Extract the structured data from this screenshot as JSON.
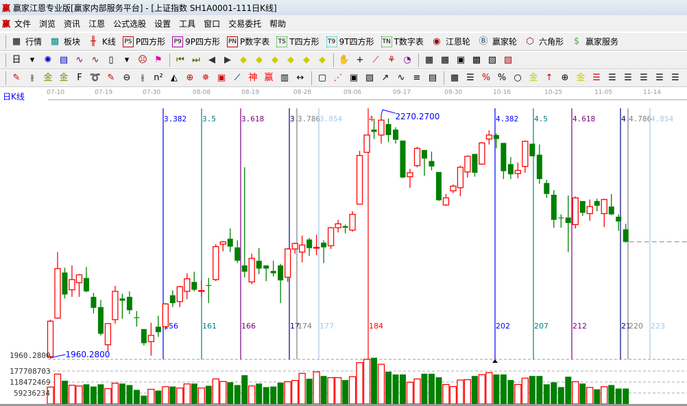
{
  "window": {
    "title": "赢家江恩专业版[赢家内部服务平台] - [上证指数  SH1A0001-111日K线]",
    "logo": "赢"
  },
  "menu": {
    "logo": "赢",
    "items": [
      "文件",
      "浏览",
      "资讯",
      "江恩",
      "公式选股",
      "设置",
      "工具",
      "窗口",
      "交易委托",
      "帮助"
    ]
  },
  "toolbar1": [
    {
      "icon": "grid-quote-icon",
      "glyph": "▦",
      "label": "行情"
    },
    {
      "icon": "sector-blocks-icon",
      "glyph": "▩",
      "label": "板块"
    },
    {
      "icon": "candlestick-icon",
      "glyph": "╫",
      "label": "K线"
    },
    {
      "icon": "ps-icon",
      "glyph": "PS",
      "label": "P四方形"
    },
    {
      "icon": "p9-icon",
      "glyph": "P9",
      "label": "9P四方形"
    },
    {
      "icon": "pn-icon",
      "glyph": "PN",
      "label": "P数字表"
    },
    {
      "icon": "ts-icon",
      "glyph": "TS",
      "label": "T四方形"
    },
    {
      "icon": "t9-icon",
      "glyph": "T9",
      "label": "9T四方形"
    },
    {
      "icon": "tn-icon",
      "glyph": "TN",
      "label": "T数字表"
    },
    {
      "icon": "gann-wheel-icon",
      "glyph": "◉",
      "label": "江恩轮"
    },
    {
      "icon": "big-wheel-icon",
      "glyph": "Ⓑ",
      "label": "赢家轮"
    },
    {
      "icon": "hexagon-icon",
      "glyph": "⬡",
      "label": "六角形"
    },
    {
      "icon": "dollar-icon",
      "glyph": "$",
      "label": "赢家服务"
    }
  ],
  "toolbar2": [
    "period-day-icon",
    "chevron-down-icon",
    "map-icon",
    "clipboard-icon",
    "wave3-icon",
    "wave9-icon",
    "candle-type-icon",
    "chevron-down-icon",
    "face-icon",
    "flag-icon",
    "first-page-icon",
    "last-page-icon",
    "left-arrow-icon",
    "right-arrow-icon",
    "sign-left-icon",
    "sign-right-icon",
    "sign-horizontal-icon",
    "sign-cross-icon",
    "sign-star-icon",
    "sign-vertical-icon",
    "hand-icon",
    "crosshair-icon",
    "pencil-line-icon",
    "tree-icon",
    "chart-pie-icon",
    "calendar-icon",
    "calculator-icon",
    "book-icon",
    "save-icon",
    "print-icon",
    "exit-icon"
  ],
  "toolbar3": [
    "pen-icon",
    "parallel-lines-icon",
    "gold-ruler-icon",
    "gold-ruler2-icon",
    "fib-icon",
    "spiral-icon",
    "pen-ruler-icon",
    "circle-ruler-icon",
    "four-lines-icon",
    "n2-icon",
    "triangle-icon",
    "target-icon",
    "web-icon",
    "square-web-icon",
    "angle-icon",
    "god-icon",
    "win-icon",
    "ruler123-icon",
    "width-icon",
    "box-icon",
    "fan-icon",
    "square-icon",
    "cross-box-icon",
    "arrow-icon",
    "wave-icon",
    "equal-icon",
    "chart-icon",
    "table-icon",
    "lines-icon",
    "percent-sign-icon",
    "percent-icon",
    "circle-icon",
    "gold-bars-icon",
    "arrow-up-icon",
    "lock-icon",
    "gold-icon",
    "hline-icon",
    "hline2-icon",
    "hline3-icon",
    "hline4-icon",
    "hline5-icon",
    "hline6-icon"
  ],
  "chart": {
    "period_label": "日K线",
    "dates": [
      "07-10",
      "07-19",
      "07-30",
      "08-08",
      "08-19",
      "08-28",
      "09-06",
      "09-17",
      "09-30",
      "10-16",
      "10-25",
      "11-05",
      "11-14"
    ],
    "price_axis_label": "1960.2800",
    "volume_axis_labels": [
      "177708703",
      "118472469",
      "59236234"
    ],
    "low_marker": "1960.2800",
    "high_marker": "2270.2700",
    "colors": {
      "up": "#ff0000",
      "down": "#008000",
      "marker": "#0000ff"
    },
    "time_lines": [
      {
        "top": "3.382",
        "bottom": "156",
        "color": "#0000ff"
      },
      {
        "top": "3.5",
        "bottom": "161",
        "color": "#008080"
      },
      {
        "top": "3.618",
        "bottom": "166",
        "color": "#800080"
      },
      {
        "top": "3.",
        "bottom": "17",
        "color": "#000080"
      },
      {
        "top": "3.786",
        "bottom": "174",
        "color": "#808080"
      },
      {
        "top": "3.854",
        "bottom": "177",
        "color": "#a6c8ee"
      },
      {
        "top": "4",
        "bottom": "184",
        "color": "#ff0000"
      },
      {
        "top": "4.382",
        "bottom": "202",
        "color": "#0000ff"
      },
      {
        "top": "4.5",
        "bottom": "207",
        "color": "#008080"
      },
      {
        "top": "4.618",
        "bottom": "212",
        "color": "#800080"
      },
      {
        "top": "4.",
        "bottom": "21",
        "color": "#000080"
      },
      {
        "top": "4.786",
        "bottom": "220",
        "color": "#808080"
      },
      {
        "top": "4.854",
        "bottom": "223",
        "color": "#a6c8ee"
      }
    ]
  },
  "chart_data": {
    "type": "candlestick",
    "ohlc": [
      [
        1963,
        2010,
        1960.28,
        2008
      ],
      [
        2012,
        2096,
        2011,
        2075
      ],
      [
        2070,
        2076,
        2037,
        2042
      ],
      [
        2048,
        2079,
        2039,
        2061
      ],
      [
        2057,
        2068,
        2039,
        2067
      ],
      [
        2063,
        2077,
        2045,
        2046
      ],
      [
        2039,
        2044,
        2018,
        2025
      ],
      [
        2026,
        2035,
        1990,
        1992
      ],
      [
        1978,
        2005,
        1970,
        2005
      ],
      [
        2010,
        2053,
        2005,
        2046
      ],
      [
        2037,
        2043,
        2011,
        2034
      ],
      [
        2039,
        2046,
        2017,
        2022
      ],
      [
        2013,
        2021,
        2001,
        2012
      ],
      [
        1998,
        1998,
        1977,
        1980
      ],
      [
        1982,
        2006,
        1964,
        1990
      ],
      [
        2001,
        2015,
        1988,
        1994
      ],
      [
        2001,
        2031,
        1997,
        2030
      ],
      [
        2041,
        2047,
        2026,
        2031
      ],
      [
        2033,
        2053,
        2026,
        2052
      ],
      [
        2046,
        2069,
        2036,
        2062
      ],
      [
        2058,
        2071,
        2046,
        2048
      ],
      [
        2046,
        2060,
        2039,
        2047
      ],
      [
        2054,
        2063,
        2031,
        2053
      ],
      [
        2061,
        2106,
        2059,
        2103
      ],
      [
        2106,
        2110,
        2097,
        2109
      ],
      [
        2113,
        2126,
        2096,
        2103
      ],
      [
        2102,
        2111,
        2082,
        2085
      ],
      [
        2079,
        2204,
        2064,
        2071
      ],
      [
        2058,
        2094,
        2055,
        2088
      ],
      [
        2085,
        2101,
        2068,
        2075
      ],
      [
        2079,
        2079,
        2059,
        2075
      ],
      [
        2072,
        2085,
        2065,
        2069
      ],
      [
        2079,
        2081,
        2031,
        2060
      ],
      [
        2064,
        2101,
        2058,
        2100
      ],
      [
        2100,
        2108,
        2094,
        2107
      ],
      [
        2096,
        2117,
        2083,
        2105
      ],
      [
        2112,
        2114,
        2091,
        2101
      ],
      [
        2101,
        2118,
        2092,
        2102
      ],
      [
        2108,
        2111,
        2082,
        2102
      ],
      [
        2104,
        2128,
        2100,
        2127
      ],
      [
        2127,
        2137,
        2121,
        2132
      ],
      [
        2129,
        2131,
        2120,
        2127
      ],
      [
        2124,
        2148,
        2122,
        2144
      ],
      [
        2157,
        2225,
        2157,
        2219
      ],
      [
        2223,
        2245,
        2223,
        2245
      ],
      [
        2252,
        2266,
        2240,
        2249
      ],
      [
        2245,
        2270.27,
        2234,
        2264
      ],
      [
        2259,
        2266,
        2236,
        2245
      ],
      [
        2252,
        2255,
        2234,
        2239
      ],
      [
        2238,
        2238,
        2190,
        2191
      ],
      [
        2192,
        2202,
        2178,
        2197
      ],
      [
        2206,
        2230,
        2204,
        2228
      ],
      [
        2226,
        2226,
        2193,
        2215
      ],
      [
        2212,
        2224,
        2200,
        2205
      ],
      [
        2198,
        2198,
        2161,
        2162
      ],
      [
        2156,
        2170,
        2155,
        2165
      ],
      [
        2174,
        2182,
        2171,
        2180
      ],
      [
        2178,
        2206,
        2167,
        2204
      ],
      [
        2198,
        2219,
        2191,
        2218
      ],
      [
        2221,
        2221,
        2192,
        2197
      ],
      [
        2208,
        2236,
        2207,
        2235
      ],
      [
        2240,
        2251,
        2233,
        2245
      ],
      [
        2245,
        2247,
        2228,
        2240
      ],
      [
        2235,
        2235,
        2189,
        2199
      ],
      [
        2208,
        2217,
        2189,
        2195
      ],
      [
        2196,
        2210,
        2190,
        2200
      ],
      [
        2205,
        2238,
        2197,
        2237
      ],
      [
        2234,
        2234,
        2218,
        2218
      ],
      [
        2220,
        2233,
        2183,
        2189
      ],
      [
        2184,
        2188,
        2165,
        2170
      ],
      [
        2169,
        2175,
        2127,
        2137
      ],
      [
        2140,
        2144,
        2127,
        2139
      ],
      [
        2140,
        2168,
        2096,
        2133
      ],
      [
        2131,
        2167,
        2126,
        2165
      ],
      [
        2161,
        2161,
        2142,
        2146
      ],
      [
        2145,
        2163,
        2136,
        2154
      ],
      [
        2161,
        2164,
        2148,
        2155
      ],
      [
        2145,
        2164,
        2128,
        2163
      ],
      [
        2154,
        2170,
        2143,
        2144
      ],
      [
        2141,
        2144,
        2123,
        2135
      ],
      [
        2125,
        2132,
        2108,
        2109
      ]
    ],
    "volume_millions": [
      91,
      161,
      125,
      101,
      97,
      106,
      94,
      106,
      83,
      112,
      110,
      102,
      76,
      45,
      79,
      72,
      93,
      94,
      86,
      108,
      110,
      86,
      98,
      135,
      121,
      117,
      102,
      155,
      97,
      110,
      91,
      94,
      115,
      120,
      127,
      165,
      136,
      173,
      151,
      142,
      142,
      129,
      147,
      223,
      241,
      249,
      214,
      174,
      159,
      159,
      117,
      135,
      163,
      163,
      144,
      105,
      94,
      129,
      131,
      151,
      158,
      169,
      159,
      159,
      129,
      105,
      139,
      151,
      151,
      106,
      117,
      91,
      147,
      120,
      110,
      89,
      79,
      93,
      102,
      83,
      83
    ],
    "price_range": [
      1960.28,
      2270.27
    ],
    "volume_ticks": [
      59236234,
      118472469,
      177708703
    ],
    "last_close_line": true
  }
}
